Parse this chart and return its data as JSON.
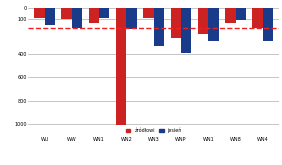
{
  "categories": [
    "WU",
    "WW",
    "WN1",
    "WN2",
    "WN3",
    "WNP",
    "WN1",
    "WN8",
    "WN4"
  ],
  "series1_name": "źródłowi",
  "series2_name": "jesień",
  "series1_color": "#cc2222",
  "series2_color": "#1a3a8a",
  "series1_values": [
    -90,
    -100,
    -130,
    -1010,
    -85,
    -260,
    -230,
    -130,
    -175
  ],
  "series2_values": [
    -145,
    -175,
    -90,
    -185,
    -330,
    -390,
    -290,
    -105,
    -285
  ],
  "dashed_line_y": -175,
  "dashed_color": "#ee2222",
  "ylim": [
    -1100,
    10
  ],
  "yticks": [
    0,
    -100,
    -400,
    -600,
    -800,
    -1000
  ],
  "ytick_labels": [
    "0",
    "100",
    "400",
    "600",
    "800",
    "1000"
  ],
  "bar_width": 0.38,
  "background_color": "#ffffff",
  "grid_color": "#999999",
  "title": ""
}
